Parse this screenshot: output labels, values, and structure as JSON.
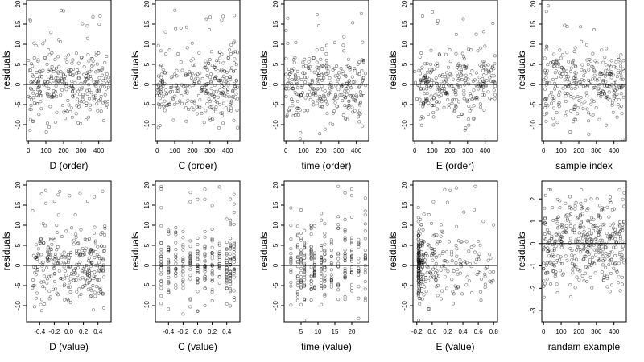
{
  "chart_data": [
    {
      "type": "scatter",
      "xlabel": "D (order)",
      "ylabel": "residuals",
      "xlim": [
        -10,
        470
      ],
      "ylim": [
        -14,
        21
      ],
      "xticks": [
        0,
        100,
        200,
        300,
        400
      ],
      "yticks": [
        -10,
        -5,
        0,
        5,
        10,
        15,
        20
      ],
      "ytick_labels": [
        "-10",
        "-5",
        "0",
        "5",
        "10",
        "15",
        "20"
      ],
      "hline": 0,
      "n_points": 300,
      "x_dist": {
        "kind": "uniform",
        "min": 0,
        "max": 460
      },
      "y_dist": {
        "kind": "residual",
        "sd": 4.5
      },
      "seed": 11
    },
    {
      "type": "scatter",
      "xlabel": "C (order)",
      "ylabel": "residuals",
      "xlim": [
        -10,
        470
      ],
      "ylim": [
        -14,
        21
      ],
      "xticks": [
        0,
        100,
        200,
        300,
        400
      ],
      "yticks": [
        -10,
        -5,
        0,
        5,
        10,
        15,
        20
      ],
      "ytick_labels": [
        "-10",
        "-5",
        "0",
        "5",
        "10",
        "15",
        "20"
      ],
      "hline": 0,
      "n_points": 300,
      "x_dist": {
        "kind": "uniform",
        "min": 0,
        "max": 460
      },
      "y_dist": {
        "kind": "residual",
        "sd": 4.5
      },
      "seed": 12
    },
    {
      "type": "scatter",
      "xlabel": "time (order)",
      "ylabel": "residuals",
      "xlim": [
        -10,
        470
      ],
      "ylim": [
        -14,
        21
      ],
      "xticks": [
        0,
        100,
        200,
        300,
        400
      ],
      "yticks": [
        -10,
        -5,
        0,
        5,
        10,
        15,
        20
      ],
      "ytick_labels": [
        "-10",
        "-5",
        "0",
        "5",
        "10",
        "15",
        "20"
      ],
      "hline": 0,
      "n_points": 300,
      "x_dist": {
        "kind": "uniform",
        "min": 0,
        "max": 460
      },
      "y_dist": {
        "kind": "residual",
        "sd": 4.5
      },
      "seed": 13
    },
    {
      "type": "scatter",
      "xlabel": "E (order)",
      "ylabel": "residuals",
      "xlim": [
        -10,
        470
      ],
      "ylim": [
        -14,
        21
      ],
      "xticks": [
        0,
        100,
        200,
        300,
        400
      ],
      "yticks": [
        -10,
        -5,
        0,
        5,
        10,
        15,
        20
      ],
      "ytick_labels": [
        "-10",
        "-5",
        "0",
        "5",
        "10",
        "15",
        "20"
      ],
      "hline": 0,
      "n_points": 300,
      "x_dist": {
        "kind": "uniform",
        "min": 0,
        "max": 460
      },
      "y_dist": {
        "kind": "residual",
        "sd": 4.5
      },
      "seed": 14
    },
    {
      "type": "scatter",
      "xlabel": "sample index",
      "ylabel": "residuals",
      "xlim": [
        -10,
        470
      ],
      "ylim": [
        -14,
        21
      ],
      "xticks": [
        0,
        100,
        200,
        300,
        400
      ],
      "yticks": [
        -10,
        -5,
        0,
        5,
        10,
        15,
        20
      ],
      "ytick_labels": [
        "-10",
        "-5",
        "0",
        "5",
        "10",
        "15",
        "20"
      ],
      "hline": 0,
      "n_points": 300,
      "x_dist": {
        "kind": "uniform",
        "min": 0,
        "max": 460
      },
      "y_dist": {
        "kind": "residual",
        "sd": 4.5
      },
      "seed": 15
    },
    {
      "type": "scatter",
      "xlabel": "D (value)",
      "ylabel": "residuals",
      "xlim": [
        -0.58,
        0.58
      ],
      "ylim": [
        -14,
        21
      ],
      "xticks": [
        -0.4,
        -0.2,
        0.0,
        0.2,
        0.4
      ],
      "xtick_labels": [
        "-0.4",
        "-0.2",
        "0.0",
        "0.2",
        "0.4"
      ],
      "yticks": [
        -10,
        -5,
        0,
        5,
        10,
        15,
        20
      ],
      "ytick_labels": [
        "-10",
        "-5",
        "0",
        "5",
        "10",
        "15",
        "20"
      ],
      "hline": 0,
      "n_points": 300,
      "x_dist": {
        "kind": "uniform",
        "min": -0.5,
        "max": 0.5
      },
      "y_dist": {
        "kind": "residual",
        "sd": 4.5
      },
      "seed": 16
    },
    {
      "type": "scatter",
      "xlabel": "C (value)",
      "ylabel": "residuals",
      "xlim": [
        -0.58,
        0.58
      ],
      "ylim": [
        -14,
        21
      ],
      "xticks": [
        -0.4,
        -0.2,
        0.0,
        0.2,
        0.4
      ],
      "xtick_labels": [
        "-0.4",
        "-0.2",
        "0.0",
        "0.2",
        "0.4"
      ],
      "yticks": [
        -10,
        -5,
        0,
        5,
        10,
        15,
        20
      ],
      "ytick_labels": [
        "-10",
        "-5",
        "0",
        "5",
        "10",
        "15",
        "20"
      ],
      "hline": 0,
      "n_points": 300,
      "x_dist": {
        "kind": "discrete",
        "values": [
          -0.5,
          -0.4,
          -0.3,
          -0.2,
          -0.1,
          0.0,
          0.1,
          0.2,
          0.3,
          0.4,
          0.45,
          0.5
        ]
      },
      "y_dist": {
        "kind": "residual",
        "sd": 4.5
      },
      "seed": 17
    },
    {
      "type": "scatter",
      "xlabel": "time (value)",
      "ylabel": "residuals",
      "xlim": [
        0,
        25
      ],
      "ylim": [
        -14,
        21
      ],
      "xticks": [
        5,
        10,
        15,
        20
      ],
      "yticks": [
        -10,
        -5,
        0,
        5,
        10,
        15,
        20
      ],
      "ytick_labels": [
        "-10",
        "-5",
        "0",
        "5",
        "10",
        "15",
        "20"
      ],
      "hline": 0,
      "n_points": 300,
      "x_dist": {
        "kind": "discrete",
        "values": [
          2,
          4,
          5,
          6,
          8,
          9,
          11,
          12,
          14,
          16,
          18,
          20,
          22,
          24
        ]
      },
      "y_dist": {
        "kind": "residual",
        "sd": 4.5
      },
      "seed": 18
    },
    {
      "type": "scatter",
      "xlabel": "E (value)",
      "ylabel": "residuals",
      "xlim": [
        -0.25,
        0.85
      ],
      "ylim": [
        -14,
        21
      ],
      "xticks": [
        -0.2,
        0.0,
        0.2,
        0.4,
        0.6,
        0.8
      ],
      "xtick_labels": [
        "-0.2",
        "0.0",
        "0.2",
        "0.4",
        "0.6",
        "0.8"
      ],
      "yticks": [
        -10,
        -5,
        0,
        5,
        10,
        15,
        20
      ],
      "ytick_labels": [
        "-10",
        "-5",
        "0",
        "5",
        "10",
        "15",
        "20"
      ],
      "hline": 0,
      "n_points": 300,
      "x_dist": {
        "kind": "skew",
        "min": -0.18,
        "max": 0.8
      },
      "y_dist": {
        "kind": "residual",
        "sd": 4.5
      },
      "seed": 19
    },
    {
      "type": "scatter",
      "xlabel": "randam example",
      "ylabel": "residuals",
      "xlim": [
        -10,
        470
      ],
      "ylim": [
        -3.5,
        2.8
      ],
      "xticks": [
        0,
        100,
        200,
        300,
        400
      ],
      "yticks": [
        -3,
        -2,
        -1,
        0,
        1,
        2
      ],
      "ytick_labels": [
        "-3",
        "-2",
        "-1",
        "0",
        "1",
        "2"
      ],
      "hline": 0,
      "n_points": 400,
      "x_dist": {
        "kind": "uniform",
        "min": 0,
        "max": 460
      },
      "y_dist": {
        "kind": "normal",
        "sd": 1.0
      },
      "seed": 20
    }
  ]
}
